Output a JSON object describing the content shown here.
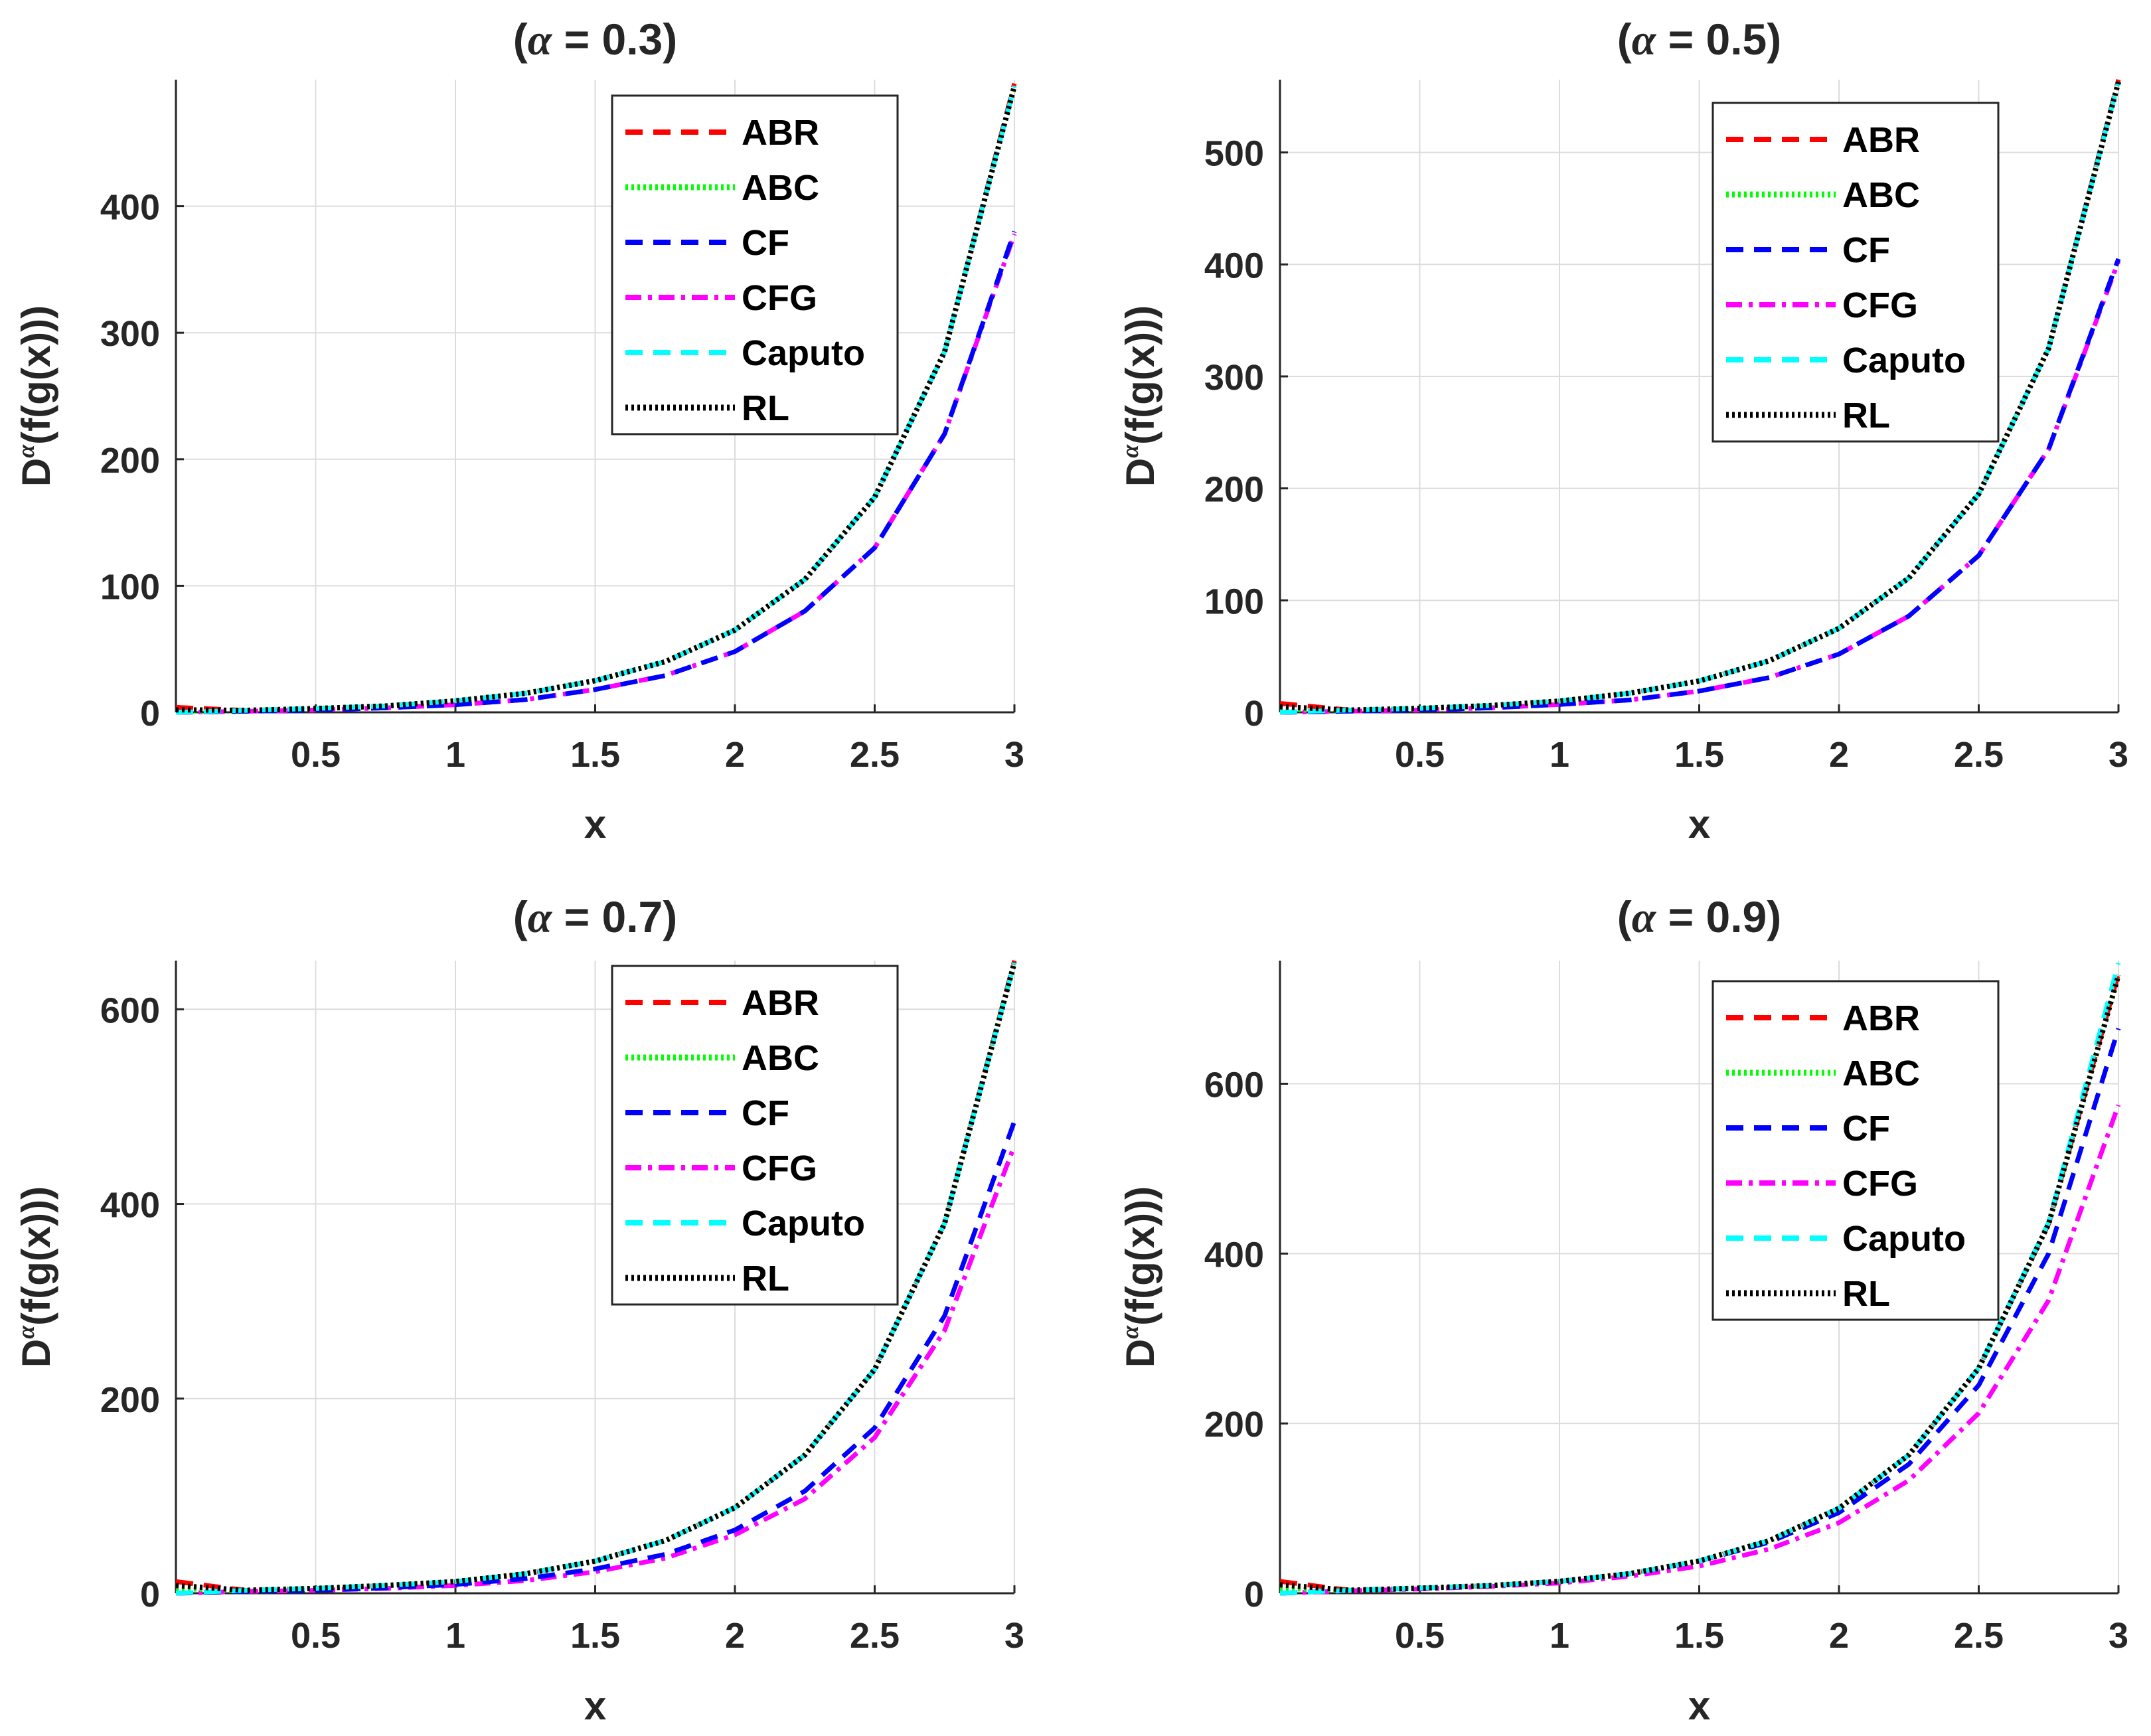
{
  "figure": {
    "x_label": "x",
    "y_label_prefix": "D",
    "y_label_superscript": "α",
    "y_label_suffix": "(f(g(x)))"
  },
  "series_styles": [
    {
      "name": "ABR",
      "color": "#ff0000",
      "dash": "dashed"
    },
    {
      "name": "ABC",
      "color": "#00ff00",
      "dash": "dotted"
    },
    {
      "name": "CF",
      "color": "#0000ff",
      "dash": "dashed"
    },
    {
      "name": "CFG",
      "color": "#ff00ff",
      "dash": "dashdot"
    },
    {
      "name": "Caputo",
      "color": "#00ffff",
      "dash": "dashed"
    },
    {
      "name": "RL",
      "color": "#000000",
      "dash": "dotted"
    }
  ],
  "chart_data": [
    {
      "type": "line",
      "title_prefix": "(",
      "title_symbol": "α",
      "title_suffix": " = 0.3)",
      "xlabel": "x",
      "ylabel": "Dα(f(g(x)))",
      "xlim": [
        0,
        3
      ],
      "ylim": [
        0,
        500
      ],
      "xticks": [
        0.5,
        1,
        1.5,
        2,
        2.5,
        3
      ],
      "yticks": [
        0,
        100,
        200,
        300,
        400
      ],
      "grid": true,
      "legend_position": "top-right",
      "x": [
        0,
        0.25,
        0.5,
        0.75,
        1.0,
        1.25,
        1.5,
        1.75,
        2.0,
        2.25,
        2.5,
        2.75,
        3.0
      ],
      "series": [
        {
          "name": "ABR",
          "values": [
            4,
            1.5,
            3,
            5,
            9,
            15,
            25,
            40,
            65,
            105,
            170,
            285,
            497
          ]
        },
        {
          "name": "ABC",
          "values": [
            1,
            1.5,
            3,
            5,
            9,
            15,
            25,
            40,
            65,
            105,
            170,
            285,
            495
          ]
        },
        {
          "name": "CF",
          "values": [
            0,
            0.8,
            1.8,
            3.5,
            6,
            10,
            18,
            29,
            48,
            80,
            130,
            220,
            380
          ]
        },
        {
          "name": "CFG",
          "values": [
            0,
            0.8,
            1.8,
            3.5,
            6,
            10,
            18,
            29,
            48,
            80,
            130,
            220,
            378
          ]
        },
        {
          "name": "Caputo",
          "values": [
            0,
            1.5,
            3,
            5,
            9,
            15,
            25,
            40,
            65,
            105,
            170,
            285,
            495
          ]
        },
        {
          "name": "RL",
          "values": [
            2,
            1.5,
            3,
            5,
            9,
            15,
            25,
            40,
            65,
            105,
            170,
            285,
            495
          ]
        }
      ]
    },
    {
      "type": "line",
      "title_prefix": "(",
      "title_symbol": "α",
      "title_suffix": " = 0.5)",
      "xlabel": "x",
      "ylabel": "Dα(f(g(x)))",
      "xlim": [
        0,
        3
      ],
      "ylim": [
        0,
        565
      ],
      "xticks": [
        0.5,
        1,
        1.5,
        2,
        2.5,
        3
      ],
      "yticks": [
        0,
        100,
        200,
        300,
        400,
        500
      ],
      "grid": true,
      "legend_position": "top-right",
      "x": [
        0,
        0.25,
        0.5,
        0.75,
        1.0,
        1.25,
        1.5,
        1.75,
        2.0,
        2.25,
        2.5,
        2.75,
        3.0
      ],
      "series": [
        {
          "name": "ABR",
          "values": [
            8,
            2,
            3.5,
            6,
            10,
            17,
            28,
            46,
            75,
            120,
            195,
            325,
            565
          ]
        },
        {
          "name": "ABC",
          "values": [
            3,
            2,
            3.5,
            6,
            10,
            17,
            28,
            46,
            75,
            120,
            195,
            325,
            563
          ]
        },
        {
          "name": "CF",
          "values": [
            0,
            1,
            2,
            4,
            7,
            11,
            19,
            31,
            52,
            86,
            140,
            235,
            405
          ]
        },
        {
          "name": "CFG",
          "values": [
            0,
            1,
            2,
            4,
            7,
            11,
            19,
            31,
            52,
            86,
            140,
            235,
            403
          ]
        },
        {
          "name": "Caputo",
          "values": [
            0,
            2,
            3.5,
            6,
            10,
            17,
            28,
            46,
            75,
            120,
            195,
            325,
            563
          ]
        },
        {
          "name": "RL",
          "values": [
            5,
            2,
            3.5,
            6,
            10,
            17,
            28,
            46,
            75,
            120,
            195,
            325,
            563
          ]
        }
      ]
    },
    {
      "type": "line",
      "title_prefix": "(",
      "title_symbol": "α",
      "title_suffix": " = 0.7)",
      "xlabel": "x",
      "ylabel": "Dα(f(g(x)))",
      "xlim": [
        0,
        3
      ],
      "ylim": [
        0,
        650
      ],
      "xticks": [
        0.5,
        1,
        1.5,
        2,
        2.5,
        3
      ],
      "yticks": [
        0,
        200,
        400,
        600
      ],
      "grid": true,
      "legend_position": "top-right",
      "x": [
        0,
        0.25,
        0.5,
        0.75,
        1.0,
        1.25,
        1.5,
        1.75,
        2.0,
        2.25,
        2.5,
        2.75,
        3.0
      ],
      "series": [
        {
          "name": "ABR",
          "values": [
            12,
            3,
            5,
            8,
            12,
            20,
            33,
            54,
            88,
            142,
            230,
            380,
            650
          ]
        },
        {
          "name": "ABC",
          "values": [
            5,
            3,
            5,
            8,
            12,
            20,
            33,
            54,
            88,
            142,
            230,
            380,
            648
          ]
        },
        {
          "name": "CF",
          "values": [
            0,
            2,
            3,
            5.5,
            9,
            15,
            25,
            40,
            65,
            105,
            170,
            285,
            485
          ]
        },
        {
          "name": "CFG",
          "values": [
            0,
            2,
            3,
            5,
            8,
            13,
            22,
            36,
            60,
            97,
            160,
            270,
            460
          ]
        },
        {
          "name": "Caputo",
          "values": [
            0,
            3,
            5,
            8,
            12,
            20,
            33,
            54,
            88,
            142,
            230,
            380,
            648
          ]
        },
        {
          "name": "RL",
          "values": [
            8,
            3,
            5,
            8,
            12,
            20,
            33,
            54,
            88,
            142,
            230,
            380,
            648
          ]
        }
      ]
    },
    {
      "type": "line",
      "title_prefix": "(",
      "title_symbol": "α",
      "title_suffix": " = 0.9)",
      "xlabel": "x",
      "ylabel": "Dα(f(g(x)))",
      "xlim": [
        0,
        3
      ],
      "ylim": [
        0,
        745
      ],
      "xticks": [
        0.5,
        1,
        1.5,
        2,
        2.5,
        3
      ],
      "yticks": [
        0,
        200,
        400,
        600
      ],
      "grid": true,
      "legend_position": "top-right",
      "x": [
        0,
        0.25,
        0.5,
        0.75,
        1.0,
        1.25,
        1.5,
        1.75,
        2.0,
        2.25,
        2.5,
        2.75,
        3.0
      ],
      "series": [
        {
          "name": "ABR",
          "values": [
            14,
            3.5,
            6,
            9,
            14,
            23,
            38,
            62,
            100,
            163,
            265,
            435,
            730
          ]
        },
        {
          "name": "ABC",
          "values": [
            6,
            3.5,
            6,
            9,
            14,
            23,
            38,
            62,
            100,
            163,
            265,
            435,
            728
          ]
        },
        {
          "name": "CF",
          "values": [
            0,
            3.5,
            6,
            9,
            14,
            23,
            38,
            60,
            95,
            152,
            245,
            400,
            665
          ]
        },
        {
          "name": "CFG",
          "values": [
            0,
            3,
            5,
            8,
            12,
            20,
            32,
            52,
            83,
            133,
            212,
            345,
            575
          ]
        },
        {
          "name": "Caputo",
          "values": [
            0,
            3.5,
            6,
            9,
            14,
            23,
            38,
            62,
            100,
            163,
            265,
            437,
            742
          ]
        },
        {
          "name": "RL",
          "values": [
            10,
            3.5,
            6,
            9,
            14,
            23,
            38,
            62,
            100,
            163,
            265,
            435,
            728
          ]
        }
      ]
    }
  ]
}
